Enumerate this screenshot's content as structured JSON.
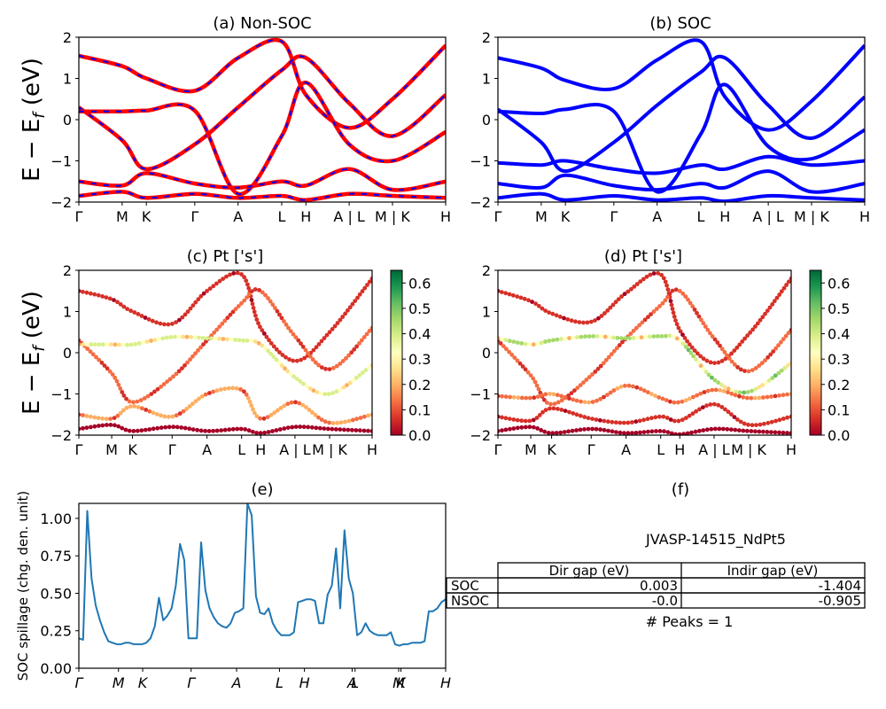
{
  "colors": {
    "nonsoc_bands": "#ff0000",
    "nonsoc_dash": "#0000ff",
    "soc_bands": "#0000ff",
    "spillage_line": "#1f77b4",
    "colorbar": [
      "#a50026",
      "#d73027",
      "#f46d43",
      "#fdae61",
      "#fee08b",
      "#ffffbf",
      "#d9ef8b",
      "#a6d96a",
      "#66bd63",
      "#1a9850",
      "#006837"
    ]
  },
  "shared": {
    "ylabel_a": "E − E",
    "ylabel_sub": "f",
    "ylabel_b": " (eV)",
    "yticks": [
      "−2",
      "−1",
      "0",
      "1",
      "2"
    ],
    "kpath_labels": [
      "Γ",
      "M",
      "K",
      "Γ",
      "A",
      "L",
      "H",
      "A | L",
      "M | K",
      "H"
    ],
    "kpath_labels_cd": [
      "Γ",
      "M",
      "K",
      "Γ",
      "A",
      "L",
      "H",
      "A | L",
      "M | K",
      "H"
    ],
    "colorbar_ticks": [
      "0.0",
      "0.1",
      "0.2",
      "0.3",
      "0.4",
      "0.5",
      "0.6"
    ]
  },
  "chart_data": [
    {
      "id": "a",
      "type": "line",
      "title": "(a) Non-SOC",
      "ylabel": "E − E_f (eV)",
      "ylim": [
        -2,
        2
      ],
      "x_ticks": [
        "Γ",
        "M",
        "K",
        "Γ",
        "A",
        "L",
        "H",
        "A | L",
        "M | K",
        "H"
      ],
      "series": [
        {
          "values": [
            1.55,
            1.3,
            1.0,
            0.7,
            1.5,
            1.9,
            0.6,
            -0.2,
            0.5,
            1.8
          ]
        },
        {
          "values": [
            0.3,
            -0.5,
            -1.2,
            -0.6,
            0.3,
            1.2,
            1.5,
            0.4,
            -0.4,
            0.6
          ]
        },
        {
          "values": [
            0.2,
            0.2,
            0.22,
            0.22,
            -1.8,
            -0.4,
            0.9,
            -0.6,
            -1.0,
            -0.3
          ]
        },
        {
          "values": [
            -1.5,
            -1.6,
            -1.3,
            -1.55,
            -1.65,
            -1.5,
            -1.6,
            -1.2,
            -1.7,
            -1.5
          ]
        },
        {
          "values": [
            -1.85,
            -1.75,
            -1.9,
            -1.8,
            -1.9,
            -1.85,
            -1.95,
            -1.8,
            -1.85,
            -1.9
          ]
        }
      ]
    },
    {
      "id": "b",
      "type": "line",
      "title": "(b) SOC",
      "ylim": [
        -2,
        2
      ],
      "x_ticks": [
        "Γ",
        "M",
        "K",
        "Γ",
        "A",
        "L",
        "H",
        "A | L",
        "M | K",
        "H"
      ],
      "series": [
        {
          "values": [
            1.5,
            1.25,
            0.95,
            0.75,
            1.45,
            1.9,
            0.55,
            -0.25,
            0.45,
            1.8
          ]
        },
        {
          "values": [
            0.25,
            -0.55,
            -1.25,
            -0.55,
            0.35,
            1.15,
            1.5,
            0.35,
            -0.45,
            0.55
          ]
        },
        {
          "values": [
            0.2,
            0.15,
            0.25,
            0.2,
            -1.75,
            -0.35,
            0.85,
            -0.65,
            -0.95,
            -0.25
          ]
        },
        {
          "values": [
            -1.05,
            -1.1,
            -1.0,
            -1.2,
            -1.3,
            -1.1,
            -1.2,
            -0.9,
            -1.1,
            -1.0
          ]
        },
        {
          "values": [
            -1.55,
            -1.65,
            -1.35,
            -1.6,
            -1.7,
            -1.55,
            -1.65,
            -1.25,
            -1.75,
            -1.55
          ]
        },
        {
          "values": [
            -1.9,
            -1.8,
            -1.95,
            -1.85,
            -1.95,
            -1.9,
            -1.98,
            -1.85,
            -1.9,
            -1.95
          ]
        }
      ]
    },
    {
      "id": "c",
      "type": "scatter",
      "title": "(c)  Pt ['s']",
      "ylim": [
        -2,
        2
      ],
      "colorbar_range": [
        0,
        0.65
      ],
      "x_ticks": [
        "Γ",
        "M",
        "K",
        "Γ",
        "A",
        "L",
        "H",
        "A | L",
        "M | K",
        "H"
      ],
      "series": [
        {
          "values": [
            1.5,
            1.3,
            1.0,
            0.7,
            1.5,
            1.9,
            0.6,
            -0.2,
            0.5,
            1.8
          ],
          "weight": 0.05
        },
        {
          "values": [
            0.3,
            -0.5,
            -1.2,
            -0.6,
            0.3,
            1.2,
            1.5,
            0.4,
            -0.4,
            0.6
          ],
          "weight": 0.1
        },
        {
          "values": [
            0.2,
            0.2,
            0.2,
            0.38,
            0.35,
            0.3,
            0.2,
            -0.6,
            -1.0,
            -0.3
          ],
          "weight": 0.3
        },
        {
          "values": [
            -1.5,
            -1.6,
            -1.3,
            -1.55,
            -1.0,
            -0.9,
            -1.6,
            -1.2,
            -1.7,
            -1.5
          ],
          "weight": 0.15
        },
        {
          "values": [
            -1.85,
            -1.75,
            -1.9,
            -1.8,
            -1.9,
            -1.85,
            -1.95,
            -1.8,
            -1.85,
            -1.9
          ],
          "weight": 0.02
        }
      ]
    },
    {
      "id": "d",
      "type": "scatter",
      "title": "(d) Pt ['s']",
      "ylim": [
        -2,
        2
      ],
      "colorbar_range": [
        0,
        0.65
      ],
      "x_ticks": [
        "Γ",
        "M",
        "K",
        "Γ",
        "A",
        "L",
        "H",
        "A | L",
        "M | K",
        "H"
      ],
      "series": [
        {
          "values": [
            1.5,
            1.25,
            0.95,
            0.75,
            1.45,
            1.9,
            0.55,
            -0.25,
            0.45,
            1.8
          ],
          "weight": 0.05
        },
        {
          "values": [
            0.3,
            -0.55,
            -1.25,
            -0.55,
            0.35,
            1.15,
            1.5,
            0.35,
            -0.45,
            0.55
          ],
          "weight": 0.1
        },
        {
          "values": [
            0.35,
            0.2,
            0.3,
            0.4,
            0.35,
            0.4,
            0.3,
            -0.65,
            -0.95,
            -0.25
          ],
          "weight": 0.35
        },
        {
          "values": [
            -1.05,
            -1.1,
            -1.0,
            -1.2,
            -0.8,
            -1.1,
            -1.2,
            -0.9,
            -1.1,
            -1.0
          ],
          "weight": 0.12
        },
        {
          "values": [
            -1.55,
            -1.65,
            -1.35,
            -1.6,
            -1.7,
            -1.55,
            -1.65,
            -1.25,
            -1.75,
            -1.55
          ],
          "weight": 0.05
        },
        {
          "values": [
            -1.9,
            -1.8,
            -1.95,
            -1.85,
            -1.95,
            -1.9,
            -1.98,
            -1.85,
            -1.9,
            -1.95
          ],
          "weight": 0.02
        }
      ]
    },
    {
      "id": "e",
      "type": "line",
      "title": "(e)",
      "ylabel": "SOC spillage (chg. den. unit)",
      "ylim": [
        0,
        1.1
      ],
      "yticks": [
        "0.00",
        "0.25",
        "0.50",
        "0.75",
        "1.00"
      ],
      "x_ticks": [
        "Γ",
        "M",
        "K",
        "Γ",
        "A",
        "L",
        "H",
        "A",
        "L",
        "M",
        "K",
        "H"
      ],
      "values": [
        0.2,
        0.19,
        1.05,
        0.6,
        0.42,
        0.32,
        0.24,
        0.18,
        0.17,
        0.16,
        0.16,
        0.17,
        0.17,
        0.16,
        0.16,
        0.16,
        0.17,
        0.2,
        0.28,
        0.47,
        0.32,
        0.35,
        0.4,
        0.55,
        0.83,
        0.72,
        0.2,
        0.2,
        0.2,
        0.84,
        0.52,
        0.4,
        0.34,
        0.3,
        0.28,
        0.27,
        0.3,
        0.37,
        0.38,
        0.4,
        1.1,
        1.02,
        0.48,
        0.37,
        0.36,
        0.4,
        0.3,
        0.25,
        0.22,
        0.22,
        0.22,
        0.24,
        0.44,
        0.45,
        0.46,
        0.46,
        0.45,
        0.3,
        0.3,
        0.49,
        0.55,
        0.8,
        0.4,
        0.92,
        0.6,
        0.5,
        0.22,
        0.24,
        0.3,
        0.25,
        0.23,
        0.22,
        0.22,
        0.22,
        0.24,
        0.16,
        0.15,
        0.16,
        0.16,
        0.17,
        0.17,
        0.17,
        0.18,
        0.38,
        0.38,
        0.4,
        0.44,
        0.46
      ]
    }
  ],
  "info": {
    "title": "(f)",
    "material": "JVASP-14515_NdPt5",
    "table": {
      "headers": [
        "",
        "Dir gap (eV)",
        "Indir gap (eV)"
      ],
      "rows": [
        [
          "SOC",
          "0.003",
          "-1.404"
        ],
        [
          "NSOC",
          "-0.0",
          "-0.905"
        ]
      ]
    },
    "peaks": "# Peaks = 1"
  }
}
